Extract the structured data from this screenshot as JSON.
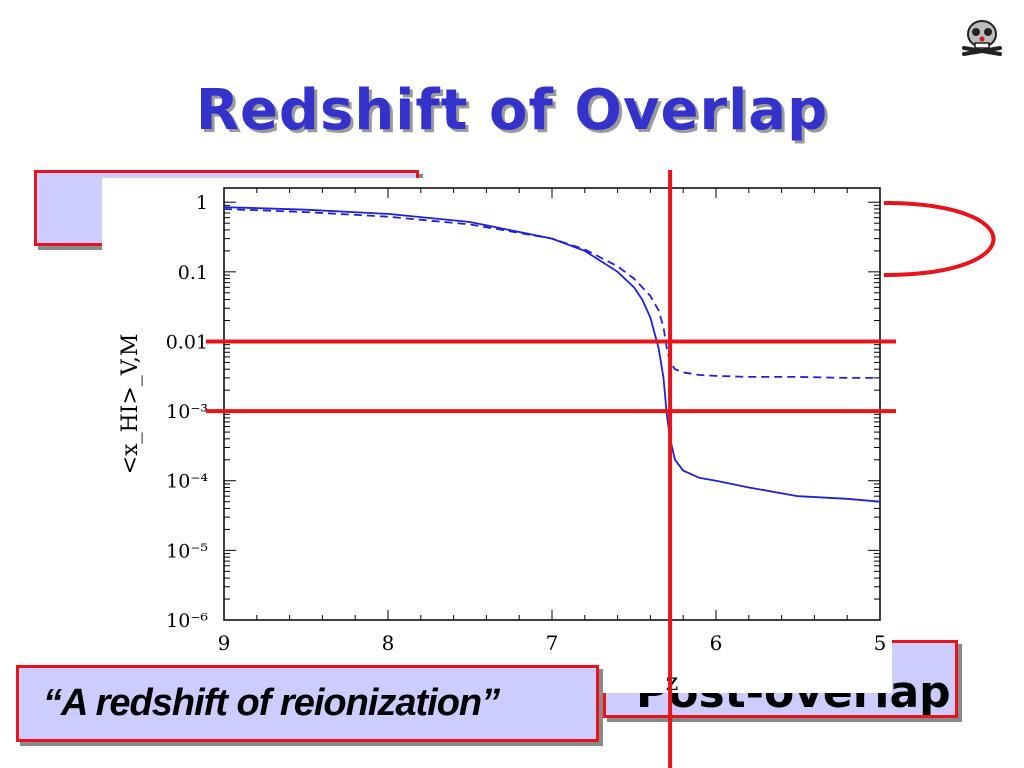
{
  "slide": {
    "title": "Redshift of Overlap",
    "box_bottom_right_text": "Post-overlap",
    "box_bottom_left_text": "“A redshift of reionization”"
  },
  "logo": {
    "icon": "skull-crossbones-logo-icon"
  },
  "colors": {
    "title": "#3333cc",
    "box_fill": "#ccccff",
    "box_border": "#e8141c",
    "curve": "#2222cc",
    "marker_line": "#e8141c"
  },
  "chart_data": {
    "type": "line",
    "xlabel": "z",
    "ylabel": "<x_HI>_V,M",
    "xlim": [
      9,
      5
    ],
    "ylim": [
      1e-06,
      1.6
    ],
    "yscale": "log",
    "x_ticks": [
      "9",
      "8",
      "7",
      "6",
      "5"
    ],
    "y_ticks": [
      "1",
      "0.1",
      "0.01",
      "10⁻³",
      "10⁻⁴",
      "10⁻⁵",
      "10⁻⁶"
    ],
    "series": [
      {
        "style": "solid",
        "x": [
          9.0,
          8.5,
          8.0,
          7.5,
          7.0,
          6.8,
          6.6,
          6.5,
          6.45,
          6.4,
          6.35,
          6.32,
          6.3,
          6.28,
          6.25,
          6.2,
          6.1,
          6.0,
          5.8,
          5.5,
          5.2,
          5.0
        ],
        "y": [
          0.85,
          0.78,
          0.68,
          0.52,
          0.3,
          0.2,
          0.1,
          0.06,
          0.04,
          0.022,
          0.008,
          0.003,
          0.0009,
          0.0004,
          0.0002,
          0.00014,
          0.00011,
          0.0001,
          8e-05,
          6e-05,
          5.5e-05,
          5e-05
        ]
      },
      {
        "style": "dashed",
        "x": [
          9.0,
          8.5,
          8.0,
          7.5,
          7.0,
          6.8,
          6.6,
          6.5,
          6.45,
          6.4,
          6.35,
          6.32,
          6.3,
          6.28,
          6.25,
          6.2,
          6.1,
          6.0,
          5.8,
          5.5,
          5.2,
          5.0
        ],
        "y": [
          0.8,
          0.72,
          0.62,
          0.48,
          0.3,
          0.21,
          0.12,
          0.08,
          0.06,
          0.045,
          0.028,
          0.016,
          0.008,
          0.005,
          0.004,
          0.0036,
          0.0033,
          0.0032,
          0.0031,
          0.0031,
          0.003,
          0.003
        ]
      }
    ],
    "markers": {
      "vertical_z": 6.28,
      "horizontal_y": [
        0.01,
        0.001
      ]
    }
  }
}
